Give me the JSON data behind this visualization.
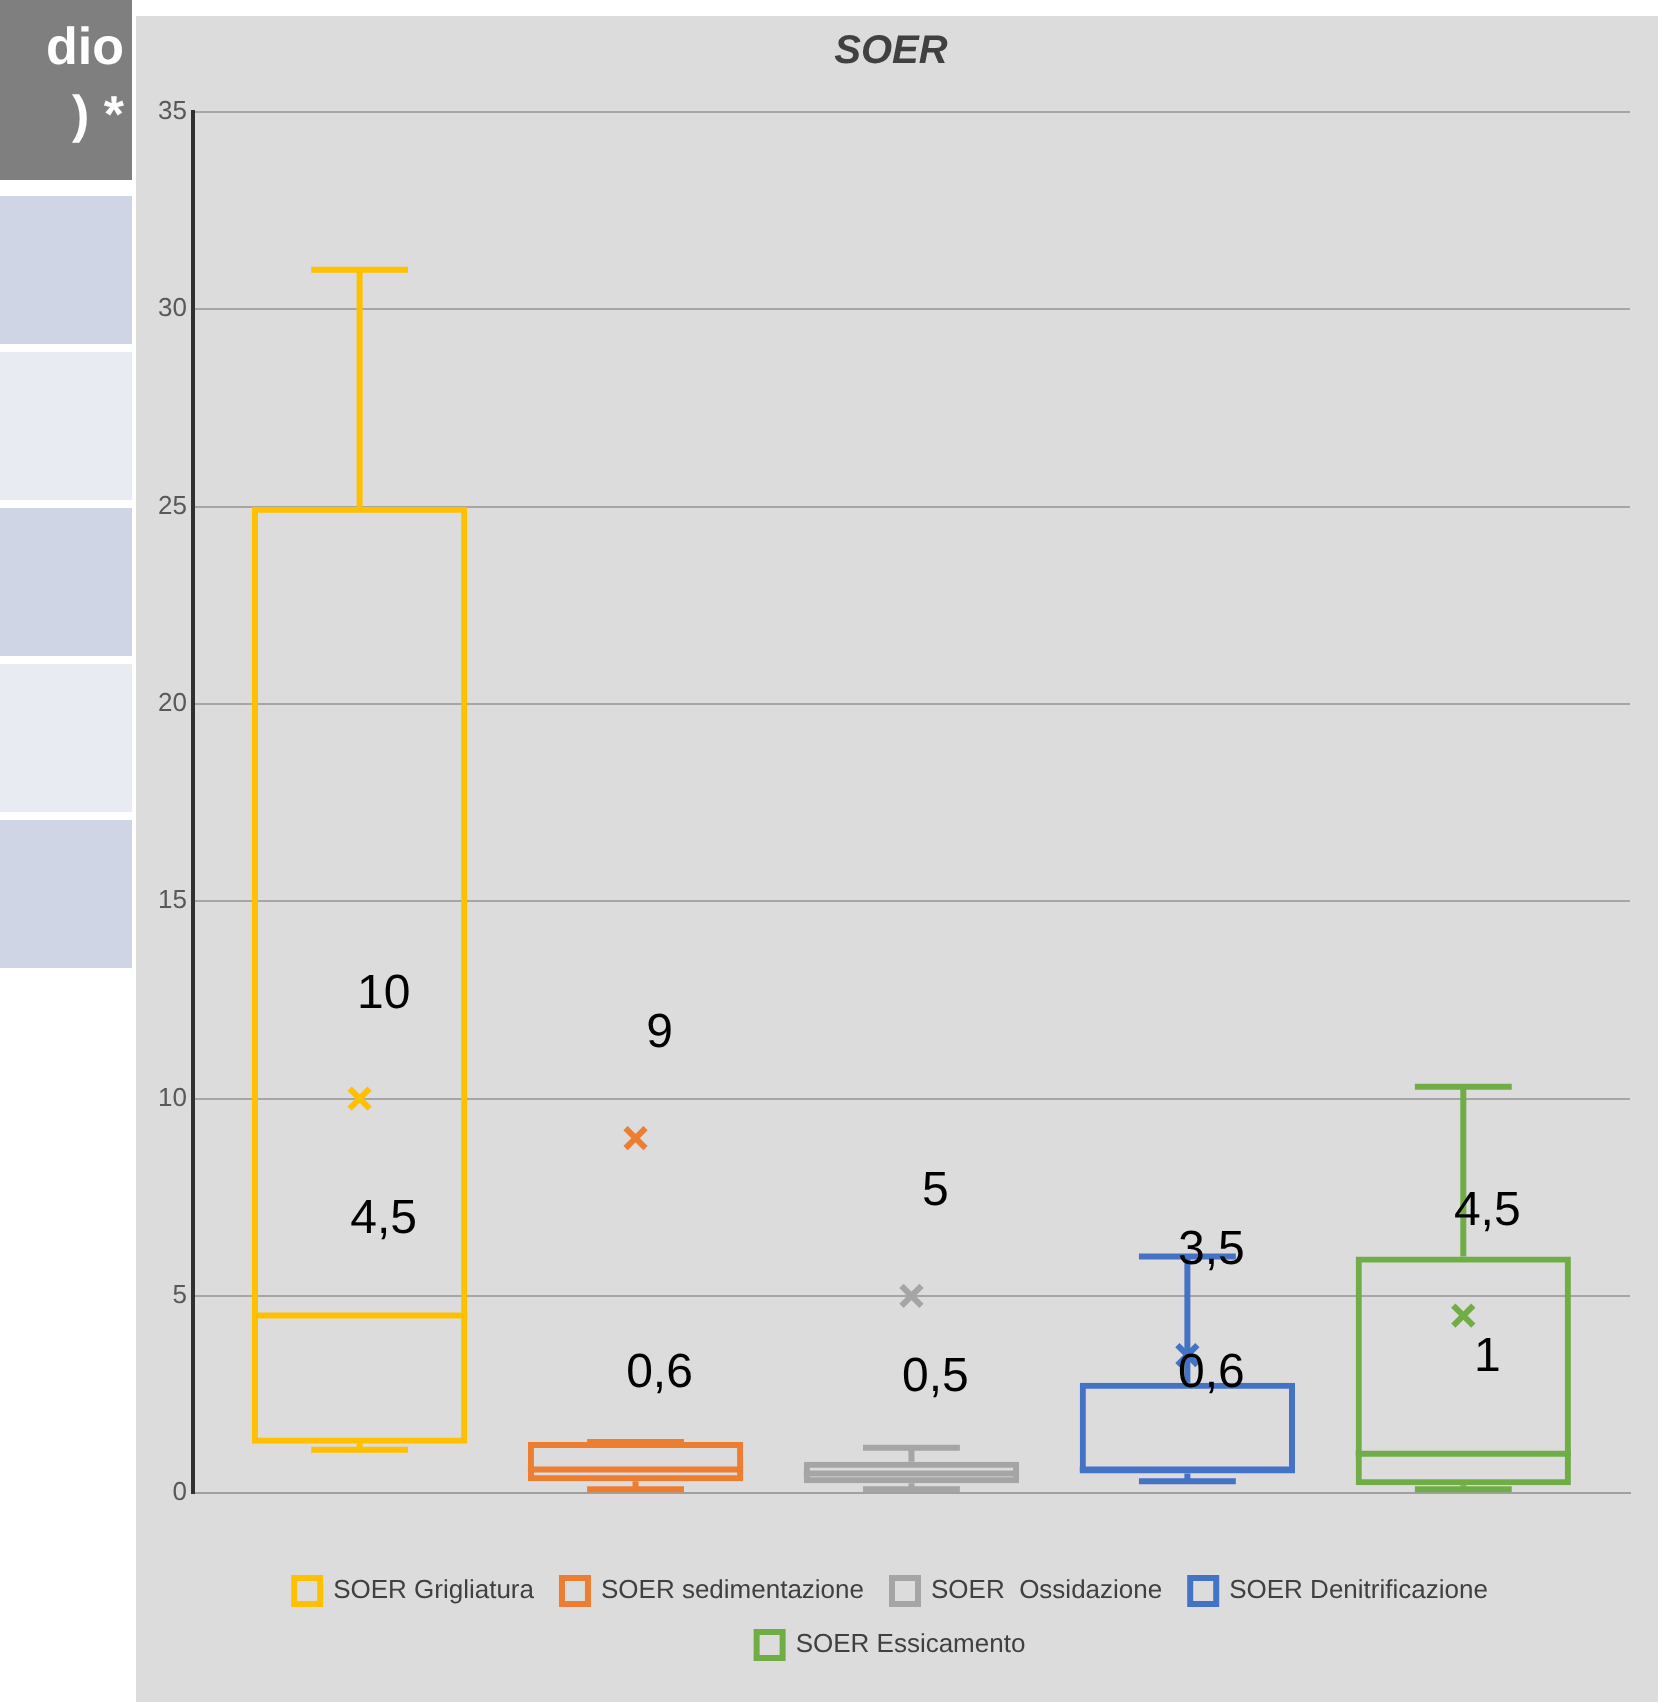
{
  "chart_data": {
    "type": "box",
    "title": "SOER",
    "categories": [
      null
    ],
    "ylim": [
      0,
      35
    ],
    "yticks": [
      0,
      5,
      10,
      15,
      20,
      25,
      30,
      35
    ],
    "grid": "y",
    "legend": "bottom",
    "marker": "cross",
    "annotations": [
      "dio",
      ") *",
      "10",
      "9",
      "5",
      "3,5",
      "4,5",
      {
        "text": "4,5",
        "y": 4.5
      },
      {
        "text": "0,6",
        "y": 0.6
      },
      {
        "text": "0,5",
        "y": 0.5
      },
      {
        "text": "0,6",
        "y": 0.6
      },
      {
        "text": "1",
        "y": 1
      }
    ],
    "series": [
      {
        "name": "SOER Grigliatura",
        "color": "#ffc000",
        "boxes": [
          {
            "low": 1.1,
            "q1": 1.25,
            "median": 4.5,
            "q3": 25,
            "high": 31,
            "mean": 10
          }
        ]
      },
      {
        "name": "SOER sedimentazione",
        "color": "#ed7d31",
        "boxes": [
          {
            "low": 0.1,
            "q1": 0.3,
            "median": 0.6,
            "q3": 1.3,
            "high": 1.3,
            "mean": 9
          }
        ]
      },
      {
        "name": "SOER  Ossidazione",
        "color": "#a5a5a5",
        "boxes": [
          {
            "low": 0.1,
            "q1": 0.25,
            "median": 0.5,
            "q3": 0.8,
            "high": 1.15,
            "mean": 5
          }
        ]
      },
      {
        "name": "SOER Denitrificazione",
        "color": "#4472c4",
        "boxes": [
          {
            "low": 0.3,
            "q1": 0.5,
            "median": 0.6,
            "q3": 2.8,
            "high": 6,
            "mean": 3.5
          }
        ]
      },
      {
        "name": "SOER Essicamento",
        "color": "#70ad47",
        "boxes": [
          {
            "low": 0.1,
            "q1": 0.2,
            "median": 1,
            "q3": 6,
            "high": 10.3,
            "mean": 4.5
          }
        ]
      }
    ]
  }
}
